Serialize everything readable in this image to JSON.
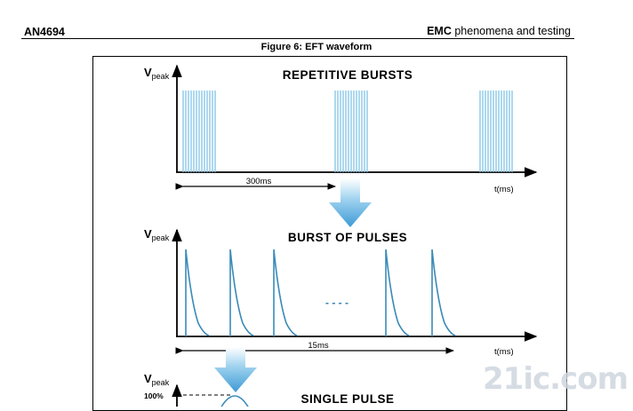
{
  "header": {
    "doc_id": "AN4694",
    "section_bold": "EMC",
    "section_rest": " phenomena and testing"
  },
  "figure": {
    "caption": "Figure 6: EFT waveform",
    "panel1": {
      "title": "REPETITIVE BURSTS",
      "y_label_main": "V",
      "y_label_sub": "peak",
      "x_label": "t(ms)",
      "interval_label": "300ms"
    },
    "panel2": {
      "title": "BURST OF PULSES",
      "y_label_main": "V",
      "y_label_sub": "peak",
      "x_label": "t(ms)",
      "interval_label": "15ms",
      "ellipsis": "- - - -"
    },
    "panel3": {
      "title": "SINGLE PULSE",
      "y_label_main": "V",
      "y_label_sub": "peak",
      "level_label": "100%"
    }
  },
  "colors": {
    "waveform": "#3a8bb8",
    "burst": "#7fc4e6",
    "arrow": "#5aaee0"
  },
  "watermark": "21ic.com"
}
